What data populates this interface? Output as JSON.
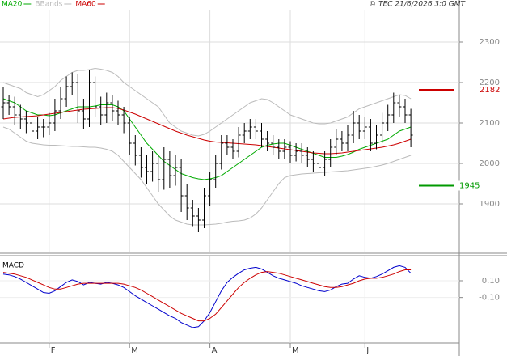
{
  "chart_data": [
    {
      "type": "ohlc",
      "credit": "© TEC 21/6/2026 3:0 GMT",
      "categories": [
        null,
        null,
        null,
        null,
        null,
        null,
        null,
        null,
        "F",
        null,
        null,
        null,
        null,
        null,
        null,
        null,
        null,
        null,
        null,
        null,
        null,
        null,
        "M",
        null,
        null,
        null,
        null,
        null,
        null,
        null,
        null,
        null,
        null,
        null,
        null,
        null,
        "A",
        null,
        null,
        null,
        null,
        null,
        null,
        null,
        null,
        null,
        null,
        null,
        null,
        null,
        "M",
        null,
        null,
        null,
        null,
        null,
        null,
        null,
        null,
        null,
        null,
        null,
        null,
        "J",
        null,
        null,
        null,
        null,
        null,
        null,
        null,
        null
      ],
      "ylim": [
        1780,
        2380
      ],
      "yticks": [
        1900,
        2000,
        2100,
        2200,
        2300
      ],
      "grid": true,
      "ohlc": {
        "color": "#000000",
        "open": [
          2140,
          2150,
          2140,
          2120,
          2110,
          2100,
          2080,
          2090,
          2090,
          2100,
          2130,
          2160,
          2190,
          2200,
          2130,
          2110,
          2200,
          2140,
          2120,
          2150,
          2130,
          2120,
          2100,
          2050,
          2020,
          1990,
          1980,
          2000,
          1960,
          2010,
          1970,
          1990,
          1920,
          1890,
          1870,
          1860,
          1920,
          1960,
          2000,
          2050,
          2040,
          2030,
          2070,
          2080,
          2090,
          2080,
          2060,
          2050,
          2040,
          2030,
          2040,
          2020,
          2030,
          2020,
          2010,
          2000,
          1990,
          2010,
          2040,
          2060,
          2050,
          2070,
          2100,
          2080,
          2090,
          2050,
          2070,
          2100,
          2120,
          2150,
          2140,
          2120
        ],
        "high": [
          2190,
          2170,
          2165,
          2145,
          2130,
          2120,
          2115,
          2110,
          2125,
          2160,
          2190,
          2215,
          2225,
          2220,
          2160,
          2230,
          2215,
          2165,
          2175,
          2170,
          2155,
          2140,
          2115,
          2070,
          2040,
          2020,
          2030,
          2020,
          2040,
          2030,
          2020,
          2010,
          1950,
          1910,
          1890,
          1940,
          1980,
          2020,
          2070,
          2070,
          2060,
          2090,
          2100,
          2110,
          2110,
          2100,
          2080,
          2070,
          2060,
          2060,
          2055,
          2050,
          2050,
          2040,
          2030,
          2020,
          2030,
          2060,
          2085,
          2080,
          2095,
          2130,
          2120,
          2115,
          2110,
          2095,
          2125,
          2145,
          2175,
          2170,
          2160,
          2135
        ],
        "low": [
          2110,
          2120,
          2095,
          2085,
          2075,
          2040,
          2060,
          2065,
          2070,
          2080,
          2110,
          2140,
          2170,
          2100,
          2085,
          2090,
          2115,
          2095,
          2100,
          2105,
          2095,
          2075,
          2020,
          1995,
          1965,
          1950,
          1955,
          1930,
          1935,
          1940,
          1945,
          1880,
          1860,
          1845,
          1830,
          1840,
          1895,
          1940,
          1985,
          2020,
          2010,
          2015,
          2050,
          2060,
          2060,
          2040,
          2030,
          2020,
          2010,
          2010,
          2000,
          2005,
          2000,
          1990,
          1980,
          1965,
          1970,
          1990,
          2020,
          2030,
          2030,
          2050,
          2060,
          2060,
          2030,
          2035,
          2050,
          2080,
          2100,
          2115,
          2100,
          2040
        ],
        "close": [
          2150,
          2140,
          2120,
          2110,
          2100,
          2080,
          2090,
          2090,
          2100,
          2130,
          2160,
          2190,
          2200,
          2130,
          2110,
          2200,
          2140,
          2120,
          2150,
          2130,
          2120,
          2100,
          2050,
          2020,
          1990,
          1980,
          2000,
          1960,
          2010,
          1970,
          1990,
          1920,
          1890,
          1870,
          1860,
          1920,
          1960,
          2000,
          2050,
          2040,
          2030,
          2070,
          2080,
          2090,
          2080,
          2060,
          2050,
          2040,
          2030,
          2040,
          2020,
          2030,
          2020,
          2010,
          2000,
          1990,
          2010,
          2040,
          2060,
          2050,
          2070,
          2100,
          2080,
          2090,
          2050,
          2070,
          2100,
          2120,
          2150,
          2140,
          2120,
          2070
        ]
      },
      "series": [
        {
          "name": "MA20",
          "color": "#00aa00",
          "values": [
            2160,
            2155,
            2150,
            2140,
            2130,
            2125,
            2120,
            2120,
            2118,
            2120,
            2125,
            2130,
            2135,
            2140,
            2140,
            2140,
            2142,
            2145,
            2145,
            2145,
            2140,
            2130,
            2110,
            2090,
            2070,
            2050,
            2035,
            2020,
            2005,
            1995,
            1985,
            1975,
            1970,
            1965,
            1962,
            1960,
            1962,
            1965,
            1970,
            1980,
            1990,
            2000,
            2010,
            2020,
            2030,
            2040,
            2045,
            2048,
            2050,
            2050,
            2045,
            2040,
            2035,
            2030,
            2025,
            2020,
            2015,
            2015,
            2015,
            2018,
            2022,
            2028,
            2035,
            2040,
            2045,
            2050,
            2055,
            2060,
            2070,
            2080,
            2085,
            2090
          ]
        },
        {
          "name": "BBands",
          "color": "#bbbbbb",
          "upper": [
            2200,
            2195,
            2190,
            2185,
            2175,
            2170,
            2165,
            2170,
            2180,
            2190,
            2205,
            2215,
            2225,
            2230,
            2230,
            2232,
            2235,
            2233,
            2230,
            2225,
            2215,
            2200,
            2190,
            2180,
            2170,
            2160,
            2150,
            2140,
            2120,
            2100,
            2090,
            2080,
            2075,
            2070,
            2068,
            2072,
            2080,
            2090,
            2100,
            2110,
            2120,
            2130,
            2140,
            2150,
            2155,
            2160,
            2158,
            2150,
            2140,
            2130,
            2120,
            2115,
            2110,
            2105,
            2100,
            2098,
            2098,
            2100,
            2105,
            2110,
            2115,
            2125,
            2135,
            2140,
            2145,
            2150,
            2155,
            2160,
            2165,
            2170,
            2168,
            2160
          ],
          "lower": [
            2090,
            2085,
            2075,
            2065,
            2055,
            2050,
            2048,
            2046,
            2045,
            2045,
            2044,
            2043,
            2042,
            2042,
            2041,
            2040,
            2040,
            2038,
            2035,
            2030,
            2020,
            2005,
            1990,
            1975,
            1960,
            1940,
            1920,
            1900,
            1885,
            1870,
            1860,
            1855,
            1850,
            1848,
            1848,
            1848,
            1849,
            1850,
            1852,
            1855,
            1857,
            1858,
            1860,
            1865,
            1875,
            1890,
            1910,
            1930,
            1950,
            1965,
            1970,
            1972,
            1974,
            1975,
            1976,
            1977,
            1978,
            1979,
            1980,
            1981,
            1982,
            1984,
            1986,
            1988,
            1990,
            1993,
            1996,
            2000,
            2005,
            2010,
            2015,
            2020
          ]
        },
        {
          "name": "MA60",
          "color": "#cc0000",
          "values": [
            2110,
            2112,
            2114,
            2115,
            2116,
            2117,
            2118,
            2120,
            2122,
            2124,
            2126,
            2128,
            2130,
            2132,
            2134,
            2135,
            2136,
            2137,
            2138,
            2138,
            2136,
            2132,
            2127,
            2122,
            2116,
            2110,
            2104,
            2098,
            2092,
            2086,
            2080,
            2075,
            2070,
            2066,
            2062,
            2058,
            2055,
            2053,
            2052,
            2051,
            2050,
            2049,
            2048,
            2047,
            2046,
            2044,
            2042,
            2040,
            2038,
            2036,
            2034,
            2032,
            2030,
            2028,
            2026,
            2025,
            2024,
            2024,
            2025,
            2026,
            2028,
            2030,
            2032,
            2034,
            2036,
            2038,
            2040,
            2043,
            2046,
            2050,
            2055,
            2060
          ]
        }
      ],
      "levels": [
        {
          "value": 2182,
          "color": "#cc0000"
        },
        {
          "value": 1945,
          "color": "#009900"
        }
      ]
    },
    {
      "type": "line",
      "title": "MACD",
      "ylim": [
        -0.645,
        0.39
      ],
      "yticks": [
        {
          "value": 0.1,
          "label": "0.10"
        },
        {
          "value": -0.1,
          "label": "-0.10"
        }
      ],
      "series": [
        {
          "color": "#0000cc",
          "values": [
            0.18,
            0.17,
            0.15,
            0.12,
            0.08,
            0.04,
            0.0,
            -0.04,
            -0.05,
            -0.02,
            0.03,
            0.08,
            0.11,
            0.09,
            0.05,
            0.08,
            0.07,
            0.06,
            0.08,
            0.07,
            0.05,
            0.02,
            -0.03,
            -0.08,
            -0.12,
            -0.16,
            -0.2,
            -0.24,
            -0.28,
            -0.32,
            -0.35,
            -0.4,
            -0.43,
            -0.46,
            -0.45,
            -0.38,
            -0.28,
            -0.15,
            -0.02,
            0.08,
            0.14,
            0.19,
            0.23,
            0.25,
            0.26,
            0.24,
            0.2,
            0.16,
            0.13,
            0.11,
            0.09,
            0.07,
            0.04,
            0.02,
            0.0,
            -0.02,
            -0.03,
            -0.01,
            0.03,
            0.06,
            0.07,
            0.12,
            0.16,
            0.14,
            0.13,
            0.15,
            0.18,
            0.22,
            0.26,
            0.28,
            0.26,
            0.19
          ]
        },
        {
          "color": "#cc0000",
          "values": [
            0.2,
            0.19,
            0.18,
            0.16,
            0.14,
            0.11,
            0.08,
            0.05,
            0.02,
            0.0,
            0.0,
            0.02,
            0.04,
            0.06,
            0.07,
            0.07,
            0.07,
            0.07,
            0.07,
            0.07,
            0.07,
            0.06,
            0.04,
            0.02,
            -0.01,
            -0.05,
            -0.09,
            -0.13,
            -0.17,
            -0.21,
            -0.25,
            -0.29,
            -0.32,
            -0.35,
            -0.38,
            -0.38,
            -0.35,
            -0.3,
            -0.22,
            -0.14,
            -0.06,
            0.02,
            0.08,
            0.13,
            0.17,
            0.2,
            0.21,
            0.2,
            0.19,
            0.17,
            0.15,
            0.13,
            0.11,
            0.09,
            0.07,
            0.05,
            0.03,
            0.02,
            0.02,
            0.03,
            0.05,
            0.07,
            0.1,
            0.12,
            0.13,
            0.13,
            0.14,
            0.16,
            0.18,
            0.21,
            0.23,
            0.23
          ]
        }
      ]
    }
  ]
}
